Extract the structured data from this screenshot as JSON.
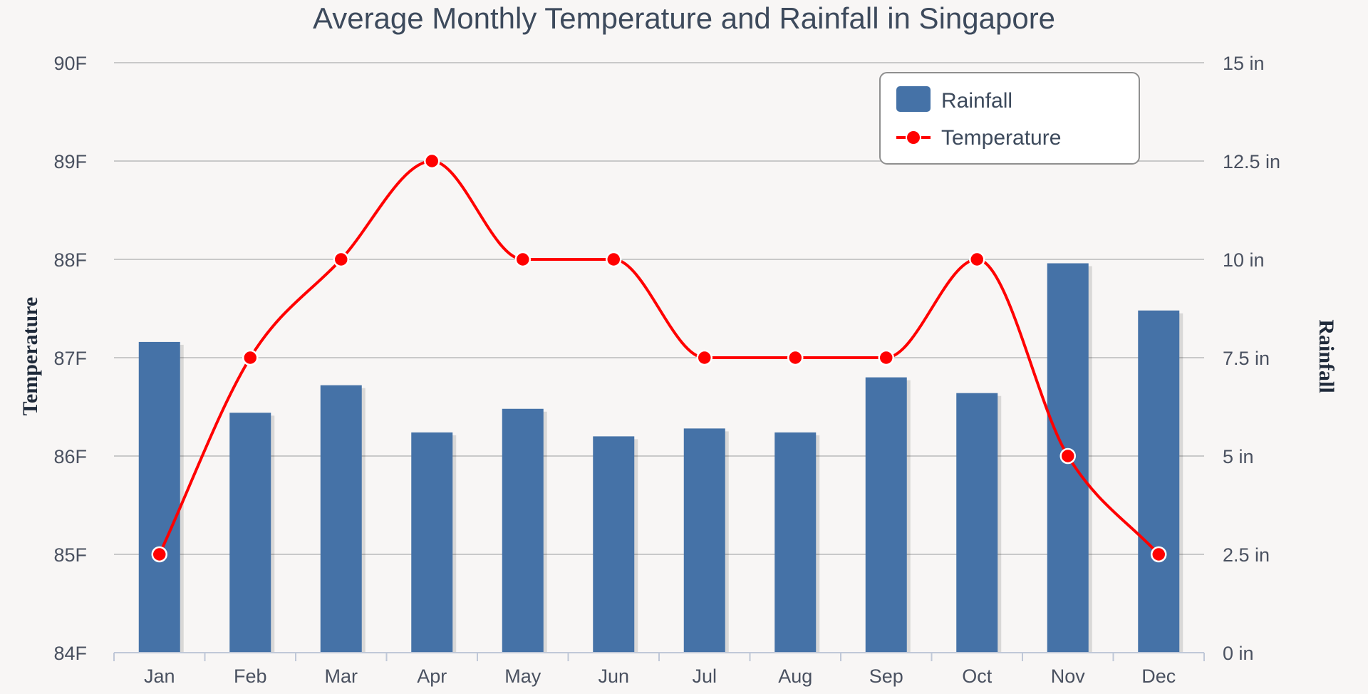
{
  "chart_data": {
    "type": "bar",
    "title": "Average Monthly Temperature and Rainfall in Singapore",
    "categories": [
      "Jan",
      "Feb",
      "Mar",
      "Apr",
      "May",
      "Jun",
      "Jul",
      "Aug",
      "Sep",
      "Oct",
      "Nov",
      "Dec"
    ],
    "series": [
      {
        "name": "Rainfall",
        "type": "bar",
        "axis": "right",
        "color": "#4572a7",
        "values": [
          7.9,
          6.1,
          6.8,
          5.6,
          6.2,
          5.5,
          5.7,
          5.6,
          7.0,
          6.6,
          9.9,
          8.7
        ]
      },
      {
        "name": "Temperature",
        "type": "line",
        "axis": "left",
        "color": "#ff0000",
        "values": [
          85,
          87,
          88,
          89,
          88,
          88,
          87,
          87,
          87,
          88,
          86,
          85
        ]
      }
    ],
    "y_left": {
      "label": "Temperature",
      "min": 84,
      "max": 90,
      "ticks": [
        "84F",
        "85F",
        "86F",
        "87F",
        "88F",
        "89F",
        "90F"
      ]
    },
    "y_right": {
      "label": "Rainfall",
      "min": 0,
      "max": 15,
      "ticks": [
        "0 in",
        "2.5 in",
        "5 in",
        "7.5 in",
        "10 in",
        "12.5 in",
        "15 in"
      ]
    },
    "legend": [
      "Rainfall",
      "Temperature"
    ],
    "legend_position": "top-right",
    "grid": true
  }
}
